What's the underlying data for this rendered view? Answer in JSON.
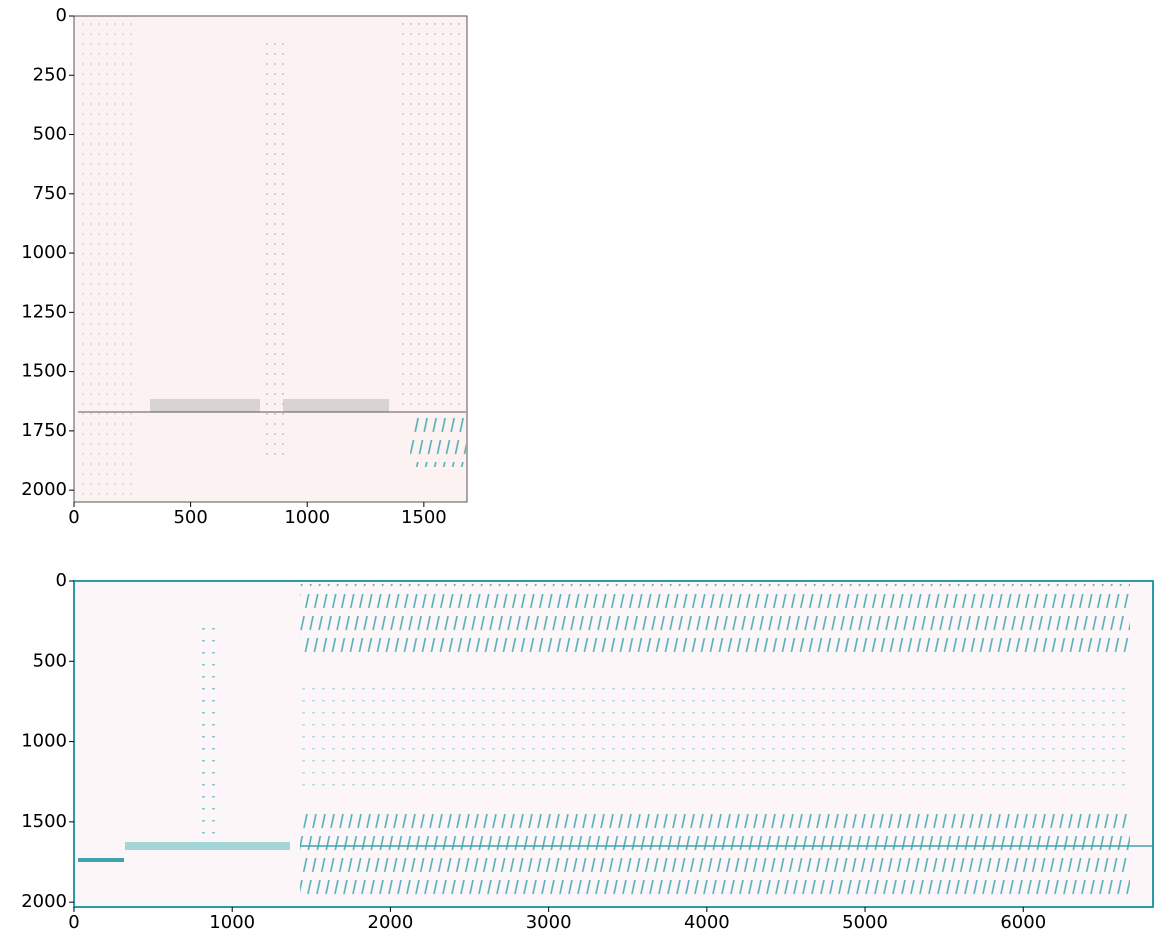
{
  "chart_data": [
    {
      "type": "heatmap",
      "xlim": [
        0,
        1685
      ],
      "ylim": [
        2050,
        0
      ],
      "xticks": [
        0,
        500,
        1000,
        1500
      ],
      "yticks": [
        0,
        250,
        500,
        750,
        1000,
        1250,
        1500,
        1750,
        2000
      ],
      "background": "#fcf2f2",
      "color": "#2a9aa5"
    },
    {
      "type": "heatmap",
      "xlim": [
        0,
        6820
      ],
      "ylim": [
        2030,
        0
      ],
      "xticks": [
        0,
        1000,
        2000,
        3000,
        4000,
        5000,
        6000
      ],
      "yticks": [
        0,
        500,
        1000,
        1500,
        2000
      ],
      "background": "#fcf6f9",
      "color": "#2a9aa5"
    }
  ]
}
